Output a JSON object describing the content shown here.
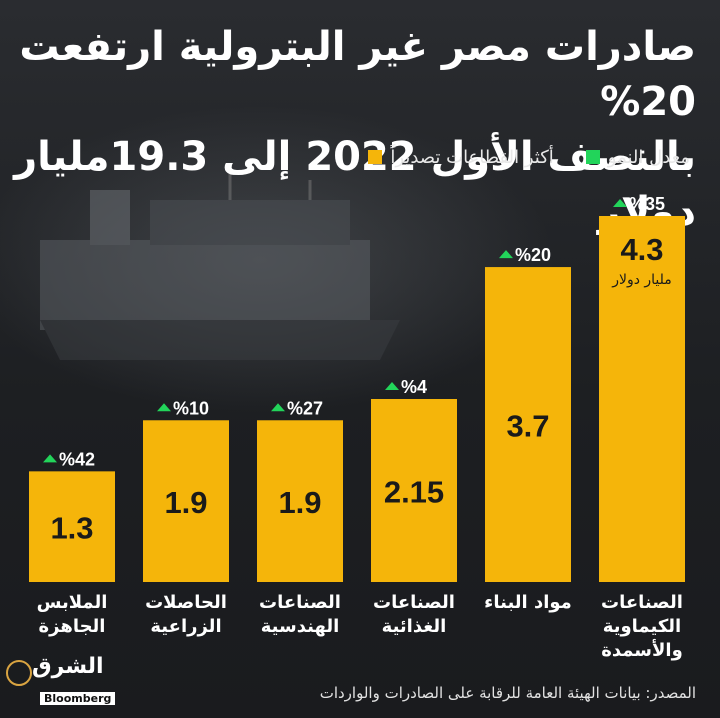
{
  "title_line1": "صادرات مصر غير البترولية ارتفعت 20%",
  "title_line2": "بالنصف الأول 2022 إلى 19.3مليار دولار",
  "legend": {
    "sectors_label": "أكثر القطاعات تصديراً",
    "sectors_color": "#f5b50a",
    "growth_label": "معدل النمو",
    "growth_color": "#22d45a"
  },
  "source": "المصدر: بيانات الهيئة العامة للرقابة على الصادرات والواردات",
  "logo": {
    "name": "الشرق",
    "sub": "Bloomberg"
  },
  "chart_data": {
    "type": "bar",
    "title": "صادرات مصر غير البترولية ارتفعت 20% بالنصف الأول 2022 إلى 19.3مليار دولار",
    "unit_note": "مليار دولار",
    "categories": [
      [
        "الصناعات",
        "الكيماوية",
        "والأسمدة"
      ],
      [
        "مواد البناء"
      ],
      [
        "الصناعات",
        "الغذائية"
      ],
      [
        "الصناعات",
        "الهندسية"
      ],
      [
        "الحاصلات",
        "الزراعية"
      ],
      [
        "الملابس",
        "الجاهزة"
      ]
    ],
    "values": [
      4.3,
      3.7,
      2.15,
      1.9,
      1.9,
      1.3
    ],
    "value_labels": [
      "4.3",
      "3.7",
      "2.15",
      "1.9",
      "1.9",
      "1.3"
    ],
    "growth_labels": [
      "%35",
      "%20",
      "%4",
      "%27",
      "%10",
      "%42"
    ],
    "bar_color": "#f5b50a",
    "growth_color": "#22d45a",
    "ylim": [
      0,
      4.3
    ]
  }
}
